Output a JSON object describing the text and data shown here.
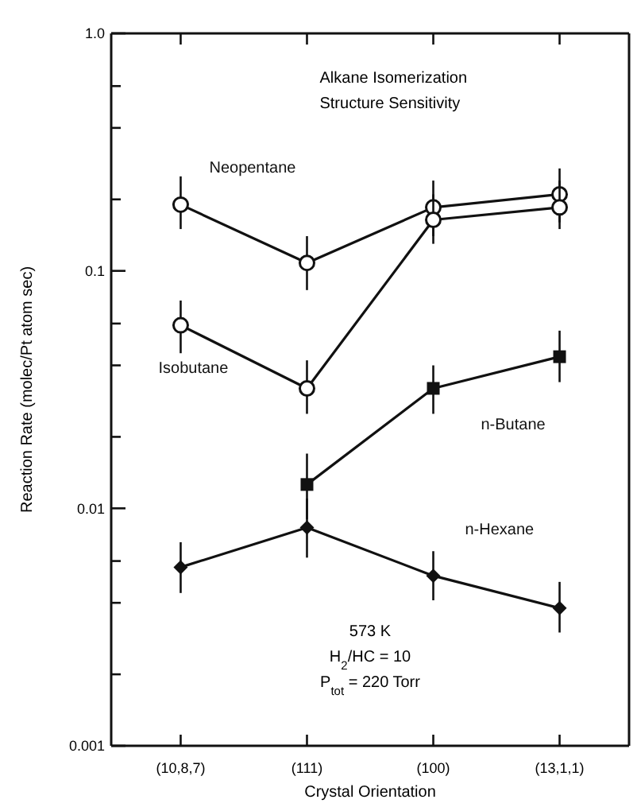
{
  "chart_data": {
    "type": "line",
    "title": "Alkane Isomerization",
    "subtitle": "Structure Sensitivity",
    "xlabel": "Crystal Orientation",
    "ylabel": "Reaction Rate (molec/Pt atom sec)",
    "categories": [
      "(10,8,7)",
      "(111)",
      "(100)",
      "(13,1,1)"
    ],
    "log": true,
    "ylim": [
      0.001,
      1
    ],
    "yticks": [
      {
        "value": 0.001,
        "label": "0.001"
      },
      {
        "value": 0.002,
        "label": null
      },
      {
        "value": 0.004,
        "label": null
      },
      {
        "value": 0.006,
        "label": null
      },
      {
        "value": 0.01,
        "label": "0.01"
      },
      {
        "value": 0.02,
        "label": null
      },
      {
        "value": 0.04,
        "label": null
      },
      {
        "value": 0.06,
        "label": null
      },
      {
        "value": 0.1,
        "label": "0.1"
      },
      {
        "value": 0.2,
        "label": null
      },
      {
        "value": 0.4,
        "label": null
      },
      {
        "value": 0.6,
        "label": null
      },
      {
        "value": 1,
        "label": "1.0"
      }
    ],
    "grid": false,
    "series": [
      {
        "name": "Neopentane",
        "color": "#111111",
        "marker": "circle",
        "values": [
          0.19,
          0.108,
          0.185,
          0.21
        ],
        "errors": [
          [
            0.15,
            0.25
          ],
          [
            0.083,
            0.14
          ],
          [
            0.14,
            0.24
          ],
          [
            0.16,
            0.27
          ]
        ]
      },
      {
        "name": "Isobutane",
        "color": "#111111",
        "marker": "circle",
        "values": [
          0.059,
          0.032,
          0.164,
          0.185
        ],
        "errors": [
          [
            0.045,
            0.075
          ],
          [
            0.025,
            0.042
          ],
          [
            0.13,
            0.21
          ],
          [
            0.15,
            0.24
          ]
        ]
      },
      {
        "name": "n-Butane",
        "color": "#111111",
        "marker": "square",
        "values": [
          null,
          0.0126,
          0.032,
          0.0435
        ],
        "errors": [
          null,
          [
            0.009,
            0.017
          ],
          [
            0.025,
            0.04
          ],
          [
            0.034,
            0.056
          ]
        ]
      },
      {
        "name": "n-Hexane",
        "color": "#111111",
        "marker": "diamond",
        "values": [
          0.00565,
          0.0083,
          0.0052,
          0.0038
        ],
        "errors": [
          [
            0.0044,
            0.0072
          ],
          [
            0.0062,
            0.011
          ],
          [
            0.0041,
            0.0066
          ],
          [
            0.003,
            0.0049
          ]
        ]
      }
    ],
    "annotations": [
      "573 K",
      "H$_{2}$/HC = 10",
      "P$_{tot}$ = 220 Torr"
    ]
  }
}
